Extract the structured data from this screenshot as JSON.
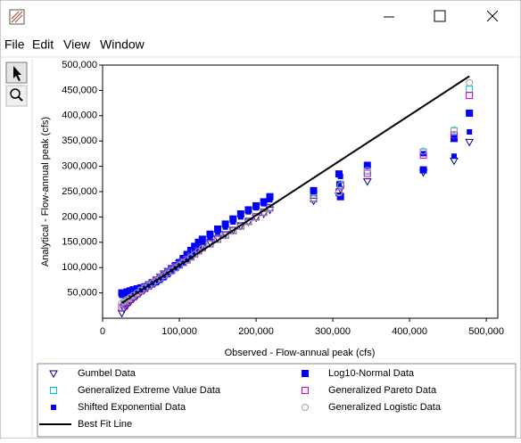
{
  "menu": [
    "File",
    "Edit",
    "View",
    "Window"
  ],
  "chart_data": {
    "type": "scatter",
    "xlabel": "Observed - Flow-annual peak (cfs)",
    "ylabel": "Analytical - Flow-annual peak (cfs)",
    "xlim": [
      0,
      515000
    ],
    "ylim": [
      0,
      500000
    ],
    "xticks": [
      0,
      {
        "value": 100000,
        "label": "100,000"
      },
      {
        "value": 200000,
        "label": "200,000"
      },
      {
        "value": 300000,
        "label": "300,000"
      },
      {
        "value": 400000,
        "label": "400,000"
      },
      {
        "value": 500000,
        "label": "500,000"
      }
    ],
    "yticks": [
      {
        "value": 50000,
        "label": "50,000"
      },
      {
        "value": 100000,
        "label": "100,000"
      },
      {
        "value": 150000,
        "label": "150,000"
      },
      {
        "value": 200000,
        "label": "200,000"
      },
      {
        "value": 250000,
        "label": "250,000"
      },
      {
        "value": 300000,
        "label": "300,000"
      },
      {
        "value": 350000,
        "label": "350,000"
      },
      {
        "value": 400000,
        "label": "400,000"
      },
      {
        "value": 450000,
        "label": "450,000"
      },
      {
        "value": 500000,
        "label": "500,000"
      }
    ],
    "x": [
      25000,
      28000,
      32000,
      36000,
      40000,
      45000,
      50000,
      55000,
      60000,
      65000,
      70000,
      75000,
      80000,
      85000,
      90000,
      95000,
      100000,
      105000,
      110000,
      115000,
      120000,
      125000,
      130000,
      140000,
      150000,
      160000,
      170000,
      180000,
      190000,
      200000,
      210000,
      218000,
      275000,
      308000,
      310000,
      345000,
      418000,
      458000,
      478000
    ],
    "series": [
      {
        "name": "Gumbel Data",
        "color": "#000080",
        "marker": "triangle",
        "values": [
          10000,
          18000,
          25000,
          32000,
          38000,
          45000,
          52000,
          58000,
          64000,
          70000,
          76000,
          82000,
          88000,
          93000,
          98000,
          103000,
          108000,
          113000,
          118000,
          124000,
          130000,
          136000,
          142000,
          150000,
          158000,
          166000,
          174000,
          182000,
          190000,
          198000,
          206000,
          214000,
          232000,
          242000,
          255000,
          270000,
          288000,
          311000,
          348000
        ]
      },
      {
        "name": "Log10-Normal Data",
        "color": "#0000ff",
        "marker": "filled-square",
        "values": [
          50000,
          50000,
          52000,
          54000,
          56000,
          58000,
          60000,
          62000,
          66000,
          70000,
          74000,
          80000,
          86000,
          92000,
          98000,
          104000,
          110000,
          118000,
          126000,
          134000,
          142000,
          150000,
          156000,
          166000,
          176000,
          186000,
          196000,
          206000,
          214000,
          222000,
          230000,
          240000,
          252000,
          285000,
          240000,
          302000,
          293000,
          355000,
          405000
        ]
      },
      {
        "name": "Generalized Extreme Value Data",
        "color": "#00c8c8",
        "marker": "square",
        "values": [
          22000,
          28000,
          33000,
          38000,
          43000,
          49000,
          55000,
          60000,
          65000,
          71000,
          76000,
          81000,
          86000,
          91000,
          96000,
          101000,
          106000,
          111000,
          116000,
          122000,
          128000,
          134000,
          140000,
          148000,
          157000,
          165000,
          174000,
          183000,
          192000,
          201000,
          210000,
          219000,
          238000,
          250000,
          265000,
          290000,
          328000,
          370000,
          452000
        ]
      },
      {
        "name": "Generalized Pareto Data",
        "color": "#c800c8",
        "marker": "square",
        "values": [
          20000,
          26000,
          32000,
          37000,
          42000,
          48000,
          54000,
          59000,
          64000,
          70000,
          75000,
          80000,
          85000,
          90000,
          95000,
          100000,
          105000,
          110000,
          115000,
          121000,
          127000,
          133000,
          139000,
          147000,
          156000,
          164000,
          173000,
          182000,
          191000,
          200000,
          209000,
          218000,
          236000,
          248000,
          262000,
          286000,
          322000,
          362000,
          440000
        ]
      },
      {
        "name": "Shifted Exponential Data",
        "color": "#0000ff",
        "marker": "small-filled-square",
        "values": [
          45000,
          46000,
          48000,
          50000,
          52000,
          54000,
          56000,
          58000,
          62000,
          66000,
          70000,
          75000,
          80000,
          86000,
          92000,
          98000,
          104000,
          110000,
          116000,
          122000,
          130000,
          140000,
          150000,
          160000,
          170000,
          180000,
          190000,
          200000,
          210000,
          218000,
          226000,
          234000,
          250000,
          265000,
          280000,
          300000,
          325000,
          320000,
          368000
        ]
      },
      {
        "name": "Generalized Logistic Data",
        "color": "#a0a0a0",
        "marker": "circle",
        "values": [
          30000,
          33000,
          37000,
          41000,
          45000,
          50000,
          55000,
          60000,
          64000,
          69000,
          74000,
          79000,
          84000,
          89000,
          94000,
          99000,
          104000,
          109000,
          114000,
          120000,
          126000,
          132000,
          138000,
          146000,
          155000,
          163000,
          172000,
          181000,
          190000,
          199000,
          208000,
          217000,
          236000,
          248000,
          262000,
          292000,
          330000,
          372000,
          465000
        ]
      },
      {
        "name": "Best Fit Line",
        "color": "#000000",
        "marker": "line",
        "x": [
          25000,
          478000
        ],
        "values": [
          30000,
          478000
        ]
      }
    ]
  }
}
